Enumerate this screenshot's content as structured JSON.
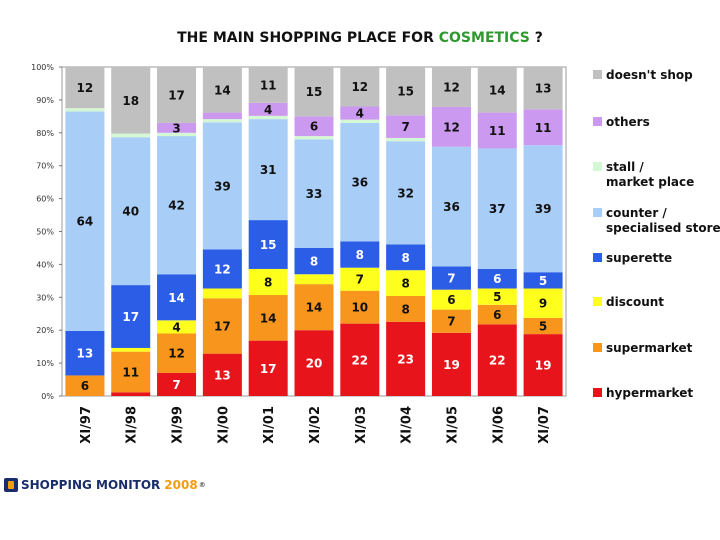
{
  "chart_data": {
    "type": "bar",
    "stacked": true,
    "percent": true,
    "title_prefix": "THE MAIN SHOPPING PLACE FOR ",
    "title_highlight": "COSMETICS",
    "title_suffix": " ?",
    "highlight_color": "#2e9a2e",
    "categories": [
      "XI/97",
      "XI/98",
      "XI/99",
      "XI/00",
      "XI/01",
      "XI/02",
      "XI/03",
      "XI/04",
      "XI/05",
      "XI/06",
      "XI/07"
    ],
    "y_ticks": [
      "0%",
      "10%",
      "20%",
      "30%",
      "40%",
      "50%",
      "60%",
      "70%",
      "80%",
      "90%",
      "100%"
    ],
    "ylim": [
      0,
      100
    ],
    "series": [
      {
        "name": "hypermarket",
        "color": "#e8141b",
        "values": [
          0,
          1,
          7,
          13,
          17,
          20,
          22,
          23,
          19,
          22,
          19
        ],
        "labels": [
          "",
          "",
          "7",
          "13",
          "17",
          "20",
          "22",
          "23",
          "19",
          "22",
          "19"
        ]
      },
      {
        "name": "supermarket",
        "color": "#f7951d",
        "values": [
          6,
          11,
          12,
          17,
          14,
          14,
          10,
          8,
          7,
          6,
          5
        ],
        "labels": [
          "6",
          "11",
          "12",
          "17",
          "14",
          "14",
          "10",
          "8",
          "7",
          "6",
          "5"
        ]
      },
      {
        "name": "discount",
        "color": "#ffff1e",
        "values": [
          0,
          1,
          4,
          3,
          8,
          3,
          7,
          8,
          6,
          5,
          9
        ],
        "labels": [
          "",
          "",
          "4",
          "",
          "8",
          "",
          "7",
          "8",
          "6",
          "5",
          "9"
        ]
      },
      {
        "name": "superette",
        "color": "#2b5de6",
        "values": [
          13,
          17,
          14,
          12,
          15,
          8,
          8,
          8,
          7,
          6,
          5
        ],
        "labels": [
          "13",
          "17",
          "14",
          "12",
          "15",
          "8",
          "8",
          "8",
          "7",
          "6",
          "5"
        ]
      },
      {
        "name": "counter / specialised store",
        "color": "#a8cdf7",
        "values": [
          64,
          40,
          42,
          39,
          31,
          33,
          36,
          32,
          36,
          37,
          39
        ],
        "labels": [
          "64",
          "40",
          "42",
          "39",
          "31",
          "33",
          "36",
          "32",
          "36",
          "37",
          "39"
        ]
      },
      {
        "name": "stall / market place",
        "color": "#d4f7d4",
        "values": [
          1,
          1,
          1,
          1,
          1,
          1,
          1,
          1,
          0,
          0,
          0
        ],
        "labels": [
          "",
          "",
          "",
          "",
          "",
          "",
          "",
          "",
          "",
          "",
          ""
        ]
      },
      {
        "name": "others",
        "color": "#cc99f0",
        "values": [
          0,
          0,
          3,
          2,
          4,
          6,
          4,
          7,
          12,
          11,
          11
        ],
        "labels": [
          "",
          "",
          "3",
          "",
          "4",
          "6",
          "4",
          "7",
          "12",
          "11",
          "11"
        ]
      },
      {
        "name": "doesn't shop",
        "color": "#c0c0c0",
        "values": [
          12,
          18,
          17,
          14,
          11,
          15,
          12,
          15,
          12,
          14,
          13
        ],
        "labels": [
          "12",
          "18",
          "17",
          "14",
          "11",
          "15",
          "12",
          "15",
          "12",
          "14",
          "13"
        ]
      }
    ],
    "legend": [
      {
        "label": "doesn't shop",
        "color": "#c0c0c0"
      },
      {
        "label": "others",
        "color": "#cc99f0"
      },
      {
        "label": "stall / market place",
        "color": "#d4f7d4"
      },
      {
        "label": "counter / specialised store",
        "color": "#a8cdf7"
      },
      {
        "label": "superette",
        "color": "#2b5de6"
      },
      {
        "label": "discount",
        "color": "#ffff1e"
      },
      {
        "label": "supermarket",
        "color": "#f7951d"
      },
      {
        "label": "hypermarket",
        "color": "#e8141b"
      }
    ],
    "legend_position": "right"
  },
  "logo": {
    "text": "SHOPPING MONITOR",
    "year": "2008",
    "mark": "®"
  }
}
